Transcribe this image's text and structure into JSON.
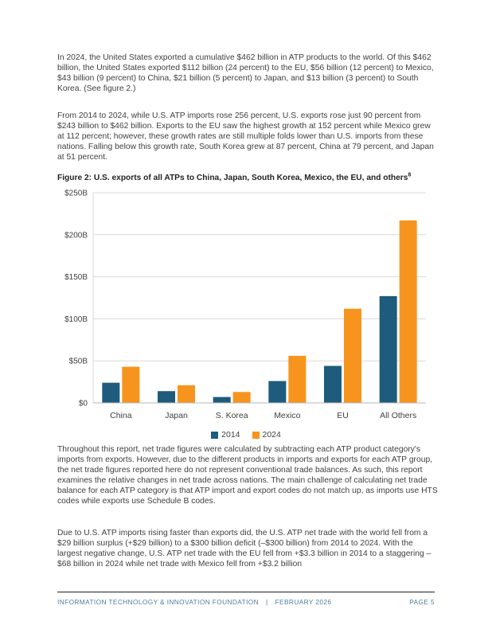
{
  "document": {
    "paragraph_1": "In 2024, the United States exported a cumulative $462 billion in ATP products to the world. Of this $462 billion, the United States exported $112 billion (24 percent) to the EU, $56 billion (12 percent) to Mexico, $43 billion (9 percent) to China, $21 billion (5 percent) to Japan, and $13 billion (3 percent) to South Korea. (See figure 2.)",
    "paragraph_2": "From 2014 to 2024, while U.S. ATP imports rose 256 percent, U.S. exports rose just 90 percent from $243 billion to $462 billion. Exports to the EU saw the highest growth at 152 percent while Mexico grew at 112 percent; however, these growth rates are still multiple folds lower than U.S. imports from these nations. Falling below this growth rate, South Korea grew at 87 percent, China at 79 percent, and Japan at 51 percent.",
    "figure_caption": "Figure 2: U.S. exports of all ATPs to China, Japan, South Korea, Mexico, the EU, and others",
    "figure_caption_footnote": "8",
    "paragraph_3": "Throughout this report, net trade figures were calculated by subtracting each ATP product category's imports from exports. However, due to the different products in imports and exports for each ATP group, the net trade figures reported here do not represent conventional trade balances. As such, this report examines the relative changes in net trade across nations. The main challenge of calculating net trade balance for each ATP category is that ATP import and export codes do not match up, as imports use HTS codes while exports use Schedule B codes.",
    "paragraph_4": "Due to U.S. ATP imports rising faster than exports did, the U.S. ATP net trade with the world fell from a $29 billion surplus (+$29 billion) to a $300 billion deficit (–$300 billion) from 2014 to 2024. With the largest negative change, U.S. ATP net trade with the EU fell from +$3.3 billion in 2014 to a staggering –$68 billion in 2024 while net trade with Mexico fell from +$3.2 billion",
    "footer": {
      "organization": "INFORMATION TECHNOLOGY & INNOVATION FOUNDATION",
      "separator": "|",
      "date": "FEBRUARY 2026",
      "page_number": "PAGE 5"
    }
  },
  "chart_data": {
    "type": "bar",
    "title": "Figure 2: U.S. exports of all ATPs to China, Japan, South Korea, Mexico, the EU, and others",
    "unit": "billions of U.S. dollars",
    "categories": [
      "China",
      "Japan",
      "S. Korea",
      "Mexico",
      "EU",
      "All Others"
    ],
    "series": [
      {
        "name": "2014",
        "color": "#1e5b7d",
        "values": [
          24,
          14,
          7,
          26,
          44,
          127
        ]
      },
      {
        "name": "2024",
        "color": "#f7941e",
        "values": [
          43,
          21,
          13,
          56,
          112,
          217
        ]
      }
    ],
    "xlabel": "",
    "ylabel": "",
    "ylim": [
      0,
      250
    ],
    "ytick_interval": 50,
    "ytick_labels": [
      "$0",
      "$50B",
      "$100B",
      "$150B",
      "$200B",
      "$250B"
    ],
    "grid": true,
    "legend_position": "bottom",
    "gridline_color": "#d9d9d9",
    "axis_line_color": "#b7b7b7"
  }
}
